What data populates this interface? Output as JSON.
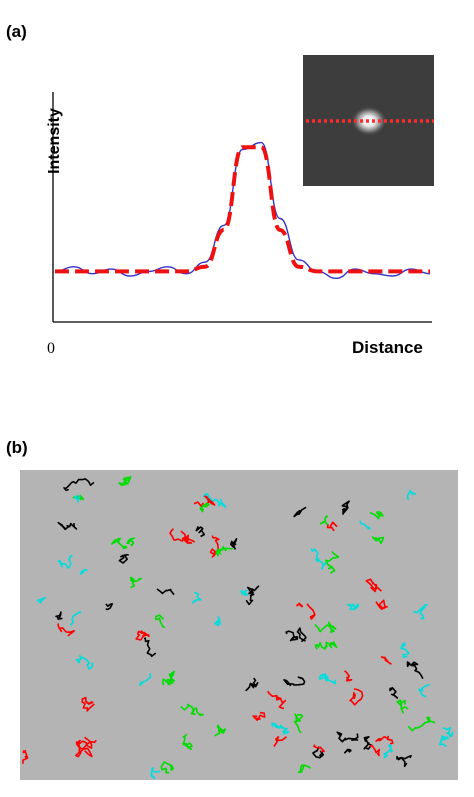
{
  "panel_a": {
    "label": "(a)",
    "ylabel": "Intensity",
    "xlabel": "Distance",
    "zero_tick": "0",
    "colors": {
      "profile": "#3333cc",
      "fit": "#ee1111",
      "axis": "#000000",
      "inset_bg": "#3a3a3a",
      "inset_line": "#ff2a2a"
    }
  },
  "panel_b": {
    "label": "(b)",
    "colors": {
      "background": "#b4b4b4",
      "tracks": [
        "#ff0000",
        "#00dd00",
        "#00dddd",
        "#000000"
      ]
    }
  },
  "chart_data": [
    {
      "type": "line",
      "title": "",
      "xlabel": "Distance",
      "ylabel": "Intensity",
      "x": [
        0,
        5,
        10,
        15,
        20,
        25,
        30,
        35,
        40,
        45,
        50,
        55,
        60,
        65,
        70,
        75,
        80,
        85,
        90,
        95,
        100
      ],
      "series": [
        {
          "values": [
            0.22,
            0.24,
            0.21,
            0.23,
            0.2,
            0.22,
            0.24,
            0.21,
            0.26,
            0.42,
            0.75,
            0.78,
            0.45,
            0.27,
            0.22,
            0.19,
            0.23,
            0.21,
            0.2,
            0.23,
            0.21
          ]
        },
        {
          "values": [
            0.22,
            0.22,
            0.22,
            0.22,
            0.22,
            0.22,
            0.22,
            0.22,
            0.24,
            0.4,
            0.76,
            0.76,
            0.4,
            0.24,
            0.22,
            0.22,
            0.22,
            0.22,
            0.22,
            0.22,
            0.22
          ]
        }
      ],
      "ylim": [
        0,
        1
      ]
    }
  ]
}
